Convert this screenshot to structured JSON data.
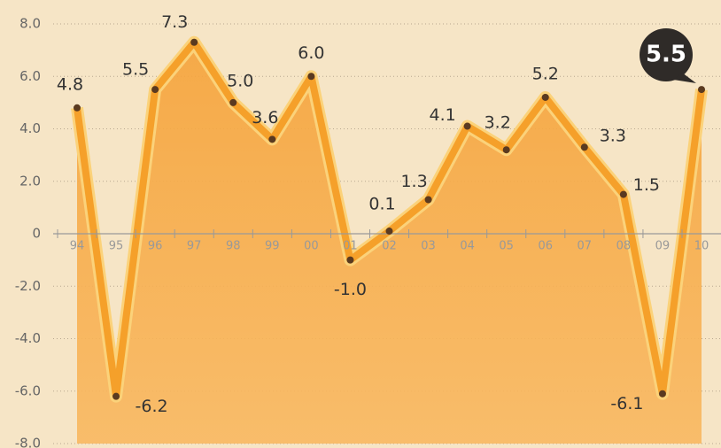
{
  "chart_data": {
    "type": "area",
    "categories": [
      "94",
      "95",
      "96",
      "97",
      "98",
      "99",
      "00",
      "01",
      "02",
      "03",
      "04",
      "05",
      "06",
      "07",
      "08",
      "09",
      "10"
    ],
    "values": [
      4.8,
      -6.2,
      5.5,
      7.3,
      5.0,
      3.6,
      6.0,
      -1.0,
      0.1,
      1.3,
      4.1,
      3.2,
      5.2,
      3.3,
      1.5,
      -6.1,
      5.5
    ],
    "value_labels": [
      "4.8",
      "-6.2",
      "5.5",
      "7.3",
      "5.0",
      "3.6",
      "6.0",
      "-1.0",
      "0.1",
      "1.3",
      "4.1",
      "3.2",
      "5.2",
      "3.3",
      "1.5",
      "-6.1",
      "5.5"
    ],
    "color": "#f5a02a",
    "ylim": [
      -8,
      8
    ],
    "yticks": [
      {
        "value": 8,
        "label": "8.0"
      },
      {
        "value": 6,
        "label": "6.0"
      },
      {
        "value": 4,
        "label": "4.0"
      },
      {
        "value": 2,
        "label": "2.0"
      },
      0,
      {
        "value": -2,
        "label": "-2.0"
      },
      {
        "value": -4,
        "label": "-4.0"
      },
      {
        "value": -6,
        "label": "-6.0"
      },
      {
        "value": -8,
        "label": "-8.0"
      }
    ],
    "grid": true
  }
}
